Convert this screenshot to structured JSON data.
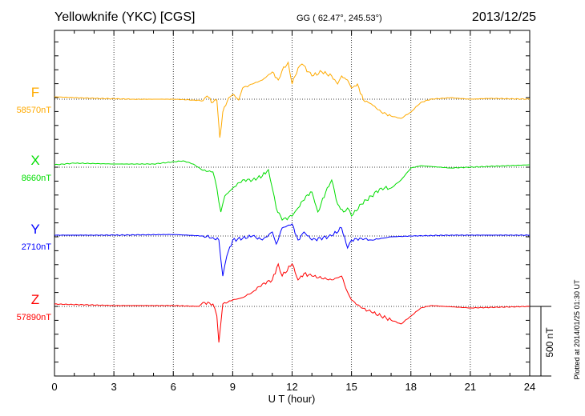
{
  "chart_data": {
    "type": "line",
    "title": "Yellowknife (YKC)  [CGS]",
    "subtitle": "GG ( 62.47°, 245.53°)",
    "date": "2013/12/25",
    "xlabel": "U T (hour)",
    "xlim": [
      0,
      24
    ],
    "xticks": [
      "0",
      "3",
      "6",
      "9",
      "12",
      "15",
      "18",
      "21",
      "24"
    ],
    "scale_bar_label": "500 nT",
    "scale_bar_nT": 500,
    "plotted_note": "Plotted at 2014/01/25 01:30 UT",
    "grid": "dotted vertical every 3 h, dotted baseline per component",
    "series": [
      {
        "name": "F",
        "baseline_label": "58570nT",
        "baseline": 58570,
        "color": "#ffaa00",
        "points": [
          [
            0,
            17
          ],
          [
            2,
            6
          ],
          [
            4,
            0
          ],
          [
            6,
            0
          ],
          [
            7,
            -6
          ],
          [
            7.5,
            -11
          ],
          [
            7.7,
            23
          ],
          [
            8,
            -23
          ],
          [
            8.2,
            -6
          ],
          [
            8.35,
            -276
          ],
          [
            8.5,
            -92
          ],
          [
            8.8,
            11
          ],
          [
            9,
            34
          ],
          [
            9.3,
            -6
          ],
          [
            9.5,
            80
          ],
          [
            10,
            109
          ],
          [
            10.5,
            138
          ],
          [
            11,
            196
          ],
          [
            11.3,
            138
          ],
          [
            11.5,
            207
          ],
          [
            11.8,
            265
          ],
          [
            12,
            109
          ],
          [
            12.3,
            224
          ],
          [
            12.5,
            253
          ],
          [
            13,
            167
          ],
          [
            13.5,
            196
          ],
          [
            14,
            167
          ],
          [
            14.3,
            109
          ],
          [
            14.5,
            167
          ],
          [
            14.8,
            138
          ],
          [
            15,
            80
          ],
          [
            15.3,
            109
          ],
          [
            15.6,
            -6
          ],
          [
            16,
            -34
          ],
          [
            16.5,
            -92
          ],
          [
            17,
            -121
          ],
          [
            17.5,
            -138
          ],
          [
            18,
            -92
          ],
          [
            18.5,
            -23
          ],
          [
            19,
            0
          ],
          [
            20,
            11
          ],
          [
            21,
            0
          ],
          [
            22,
            6
          ],
          [
            24,
            0
          ]
        ]
      },
      {
        "name": "X",
        "baseline_label": "8660nT",
        "baseline": 8660,
        "color": "#00dd00",
        "points": [
          [
            0,
            17
          ],
          [
            1,
            29
          ],
          [
            3,
            23
          ],
          [
            5,
            23
          ],
          [
            6.5,
            46
          ],
          [
            7,
            23
          ],
          [
            7.5,
            -23
          ],
          [
            8,
            -34
          ],
          [
            8.2,
            -150
          ],
          [
            8.4,
            -322
          ],
          [
            8.6,
            -207
          ],
          [
            9,
            -150
          ],
          [
            9.5,
            -92
          ],
          [
            10,
            -92
          ],
          [
            10.5,
            -63
          ],
          [
            10.8,
            -17
          ],
          [
            11,
            -150
          ],
          [
            11.2,
            -293
          ],
          [
            11.5,
            -380
          ],
          [
            12,
            -351
          ],
          [
            12.3,
            -293
          ],
          [
            12.7,
            -207
          ],
          [
            13,
            -178
          ],
          [
            13.3,
            -322
          ],
          [
            13.7,
            -178
          ],
          [
            14,
            -92
          ],
          [
            14.3,
            -265
          ],
          [
            14.6,
            -322
          ],
          [
            14.8,
            -293
          ],
          [
            15,
            -351
          ],
          [
            15.5,
            -265
          ],
          [
            16,
            -207
          ],
          [
            16.5,
            -150
          ],
          [
            17,
            -150
          ],
          [
            17.5,
            -92
          ],
          [
            18,
            -6
          ],
          [
            18.5,
            11
          ],
          [
            20,
            -6
          ],
          [
            22,
            6
          ],
          [
            24,
            17
          ]
        ]
      },
      {
        "name": "Y",
        "baseline_label": "2710nT",
        "baseline": 2710,
        "color": "#0000ff",
        "points": [
          [
            0,
            6
          ],
          [
            3,
            6
          ],
          [
            6,
            11
          ],
          [
            7.5,
            0
          ],
          [
            8,
            -11
          ],
          [
            8.3,
            -29
          ],
          [
            8.5,
            -288
          ],
          [
            8.7,
            -144
          ],
          [
            9,
            -29
          ],
          [
            9.5,
            -17
          ],
          [
            10,
            0
          ],
          [
            10.5,
            -29
          ],
          [
            11,
            29
          ],
          [
            11.2,
            -58
          ],
          [
            11.5,
            58
          ],
          [
            12,
            86
          ],
          [
            12.3,
            -29
          ],
          [
            12.6,
            29
          ],
          [
            13,
            -29
          ],
          [
            14,
            0
          ],
          [
            14.5,
            58
          ],
          [
            14.8,
            -86
          ],
          [
            15,
            -29
          ],
          [
            15.5,
            -17
          ],
          [
            16,
            -29
          ],
          [
            17,
            -6
          ],
          [
            18,
            0
          ],
          [
            20,
            6
          ],
          [
            24,
            6
          ]
        ]
      },
      {
        "name": "Z",
        "baseline_label": "57890nT",
        "baseline": 57890,
        "color": "#ff0000",
        "points": [
          [
            0,
            17
          ],
          [
            3,
            6
          ],
          [
            6,
            6
          ],
          [
            7.3,
            0
          ],
          [
            7.5,
            29
          ],
          [
            8,
            17
          ],
          [
            8.2,
            -69
          ],
          [
            8.3,
            -259
          ],
          [
            8.5,
            17
          ],
          [
            9,
            46
          ],
          [
            9.5,
            63
          ],
          [
            10,
            103
          ],
          [
            10.5,
            161
          ],
          [
            11,
            190
          ],
          [
            11.3,
            305
          ],
          [
            11.5,
            218
          ],
          [
            12,
            305
          ],
          [
            12.3,
            190
          ],
          [
            12.6,
            236
          ],
          [
            13,
            218
          ],
          [
            14,
            190
          ],
          [
            14.5,
            218
          ],
          [
            14.8,
            103
          ],
          [
            15,
            46
          ],
          [
            15.5,
            -11
          ],
          [
            16,
            -40
          ],
          [
            17,
            -98
          ],
          [
            17.5,
            -126
          ],
          [
            18,
            -69
          ],
          [
            18.5,
            -11
          ],
          [
            19,
            6
          ],
          [
            21,
            -11
          ],
          [
            24,
            0
          ]
        ]
      }
    ]
  }
}
